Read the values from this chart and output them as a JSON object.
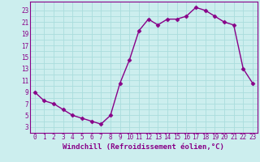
{
  "x": [
    0,
    1,
    2,
    3,
    4,
    5,
    6,
    7,
    8,
    9,
    10,
    11,
    12,
    13,
    14,
    15,
    16,
    17,
    18,
    19,
    20,
    21,
    22,
    23
  ],
  "y": [
    9,
    7.5,
    7,
    6,
    5,
    4.5,
    4,
    3.5,
    5,
    10.5,
    14.5,
    19.5,
    21.5,
    20.5,
    21.5,
    21.5,
    22,
    23.5,
    23,
    22,
    21,
    20.5,
    13,
    10.5
  ],
  "line_color": "#880088",
  "marker": "D",
  "markersize": 2.5,
  "linewidth": 1.0,
  "bg_color": "#cceeee",
  "grid_color": "#aadddd",
  "xlabel": "Windchill (Refroidissement éolien,°C)",
  "xlabel_fontsize": 6.5,
  "xtick_labels": [
    "0",
    "1",
    "2",
    "3",
    "4",
    "5",
    "6",
    "7",
    "8",
    "9",
    "10",
    "11",
    "12",
    "13",
    "14",
    "15",
    "16",
    "17",
    "18",
    "19",
    "20",
    "21",
    "22",
    "23"
  ],
  "ytick_values": [
    3,
    5,
    7,
    9,
    11,
    13,
    15,
    17,
    19,
    21,
    23
  ],
  "ytick_labels": [
    "3",
    "5",
    "7",
    "9",
    "11",
    "13",
    "15",
    "17",
    "19",
    "21",
    "23"
  ],
  "ylim": [
    2.0,
    24.5
  ],
  "xlim": [
    -0.5,
    23.5
  ],
  "tick_fontsize": 5.5,
  "tick_color": "#880088",
  "spine_color": "#880088"
}
